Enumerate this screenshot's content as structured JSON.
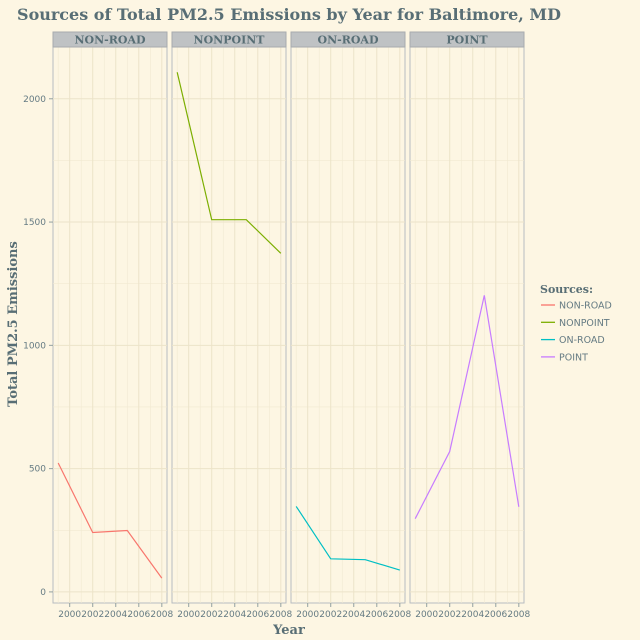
{
  "chart_data": {
    "type": "line",
    "title": "Sources of Total PM2.5 Emissions by Year for Baltimore, MD",
    "xlabel": "Year",
    "ylabel": "Total PM2.5 Emissions",
    "x": [
      1999,
      2002,
      2005,
      2008
    ],
    "x_ticks": [
      2000,
      2002,
      2004,
      2006,
      2008
    ],
    "xlim": [
      1998.55,
      2008.45
    ],
    "y_ticks": [
      0,
      500,
      1000,
      1500,
      2000
    ],
    "ylim": [
      -45,
      2210
    ],
    "grid": true,
    "legend": {
      "title": "Sources:",
      "placement": "right"
    },
    "series": [
      {
        "name": "NON-ROAD",
        "values": [
          522.94,
          240.85,
          248.93,
          55.82
        ],
        "color": "#f8766d"
      },
      {
        "name": "NONPOINT",
        "values": [
          2107.63,
          1509.5,
          1509.5,
          1373.21
        ],
        "color": "#7cae00"
      },
      {
        "name": "ON-ROAD",
        "values": [
          346.82,
          134.31,
          130.43,
          88.28
        ],
        "color": "#00bfc4"
      },
      {
        "name": "POINT",
        "values": [
          296.8,
          569.26,
          1202.49,
          344.98
        ],
        "color": "#c77cff"
      }
    ]
  }
}
